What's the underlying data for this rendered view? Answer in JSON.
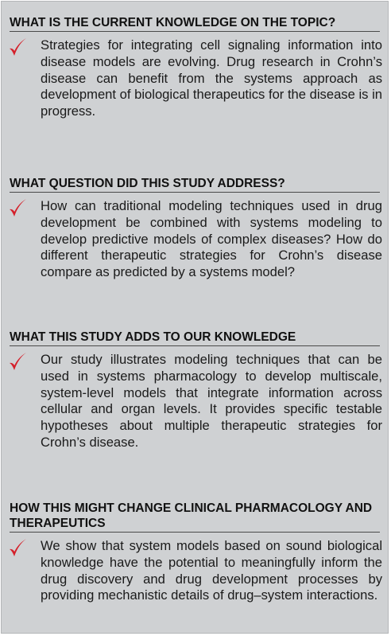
{
  "sections": [
    {
      "heading": "WHAT IS THE CURRENT KNOWLEDGE ON THE TOPIC?",
      "body": "Strategies for integrating cell signaling information into disease models are evolving. Drug research in Crohn’s disease can benefit from the systems approach as development of biological therapeutics for the disease is in progress."
    },
    {
      "heading": "WHAT QUESTION DID THIS STUDY ADDRESS?",
      "body": "How can traditional modeling techniques used in drug development be combined with systems modeling to develop predictive models of complex diseases? How do different therapeutic strategies for Crohn’s disease compare as predicted by a systems model?"
    },
    {
      "heading": "WHAT THIS STUDY ADDS TO OUR KNOWLEDGE",
      "body": "Our study illustrates modeling techniques that can be used in systems pharmacology to develop multiscale, system-level models that integrate information across cellular and organ levels. It provides specific testable hypotheses about multiple therapeutic strategies for Crohn’s disease."
    },
    {
      "heading": "HOW THIS MIGHT CHANGE CLINICAL PHARMACOLOGY AND THERAPEUTICS",
      "body": "We show that system models based on sound biological knowledge have the potential to meaningfully inform the drug discovery and drug development processes by providing mechanistic details of drug–system interactions."
    }
  ],
  "colors": {
    "panel_background": "#cfd1d3",
    "checkmark": "#d4202a",
    "heading_text": "#111111",
    "body_text": "#1a1a1a"
  },
  "icons": {
    "bullet": "checkmark-icon"
  }
}
